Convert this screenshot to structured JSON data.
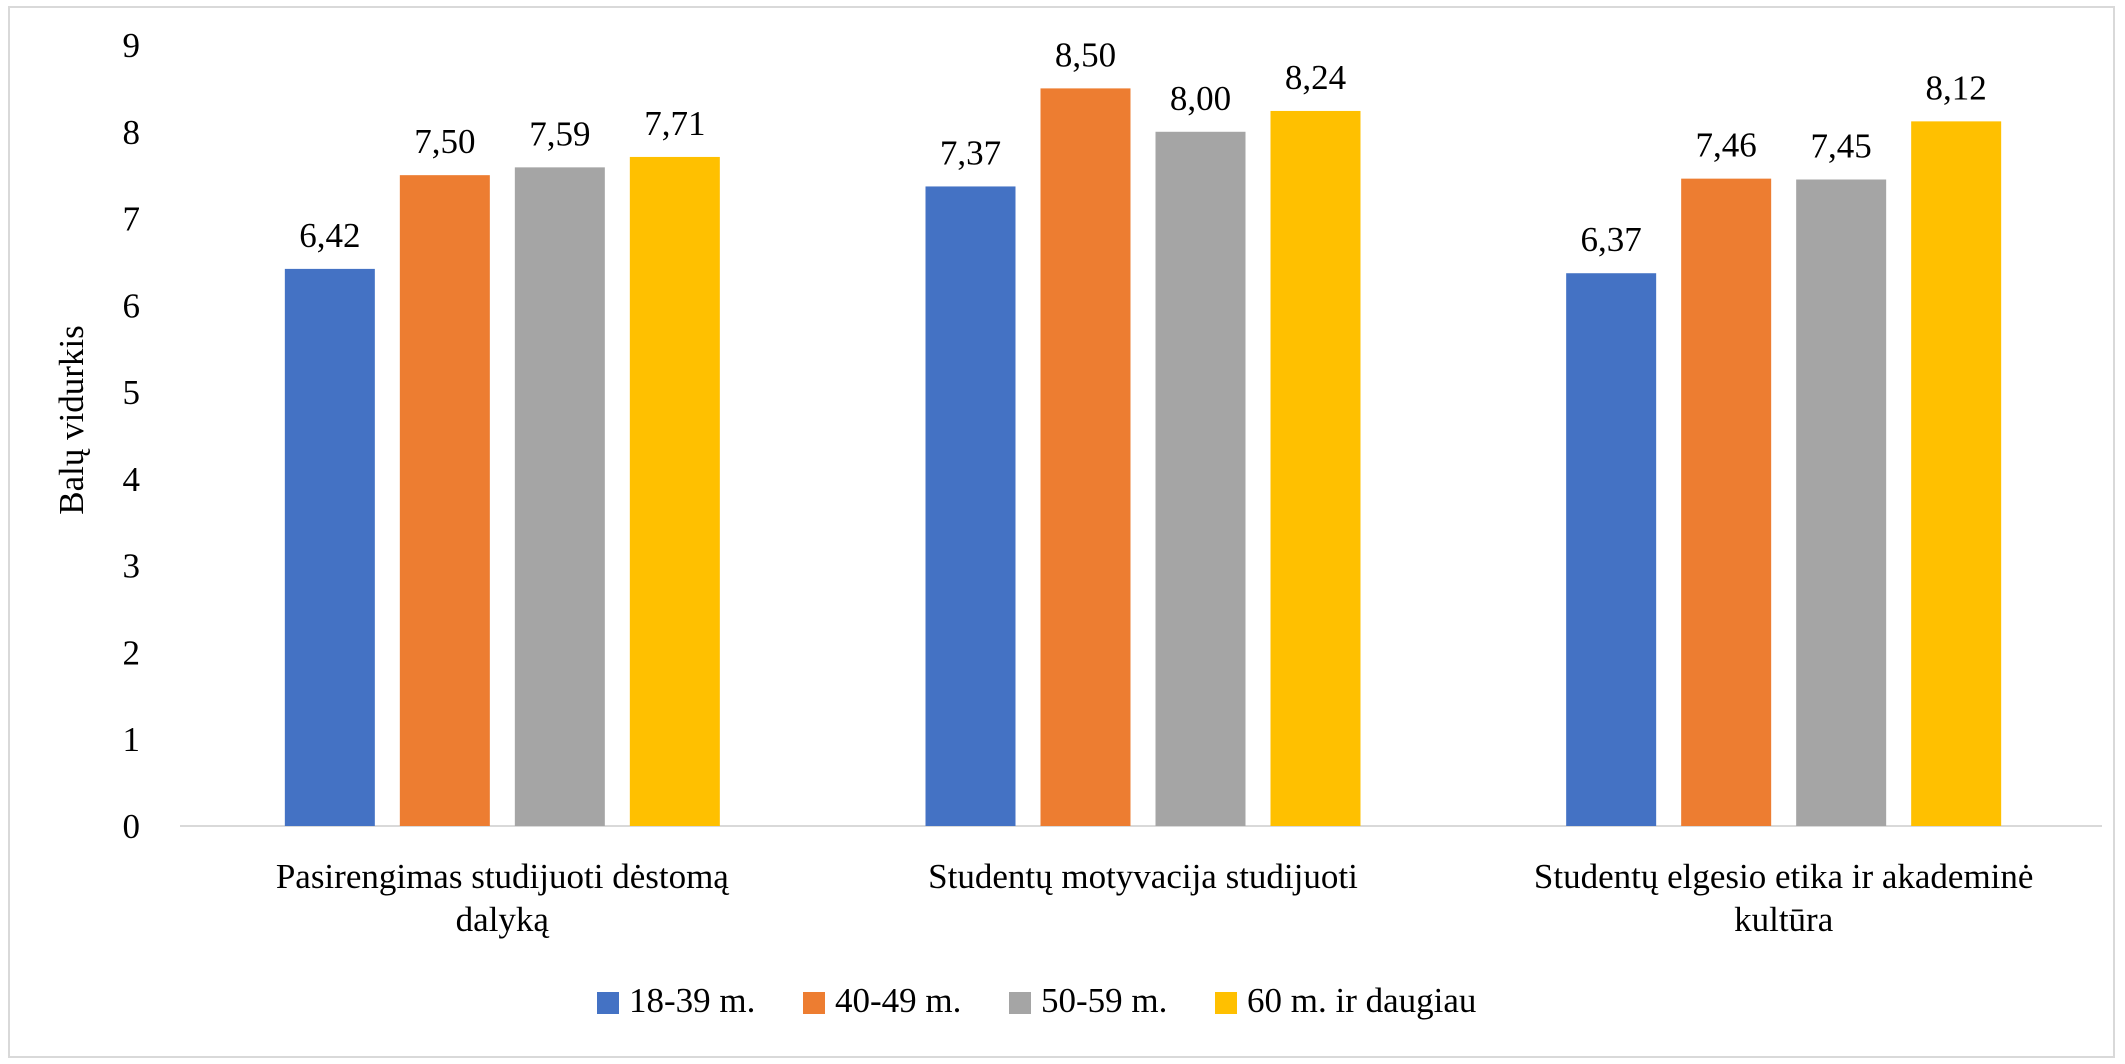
{
  "chart_data": {
    "type": "bar",
    "title": "",
    "xlabel": "",
    "ylabel": "Balų vidurkis",
    "ylim": [
      0,
      9
    ],
    "yticks": [
      "0",
      "1",
      "2",
      "3",
      "4",
      "5",
      "6",
      "7",
      "8",
      "9"
    ],
    "grid": false,
    "legend_position": "bottom",
    "categories": [
      [
        "Pasirengimas studijuoti dėstomą",
        "dalyką"
      ],
      [
        "Studentų motyvacija studijuoti"
      ],
      [
        "Studentų elgesio etika ir akademinė",
        "kultūra"
      ]
    ],
    "series": [
      {
        "name": "18-39 m.",
        "color": "#4472C4",
        "values": [
          6.42,
          7.37,
          6.37
        ],
        "labels": [
          "6,42",
          "7,37",
          "6,37"
        ]
      },
      {
        "name": "40-49 m.",
        "color": "#ED7D31",
        "values": [
          7.5,
          8.5,
          7.46
        ],
        "labels": [
          "7,50",
          "8,50",
          "7,46"
        ]
      },
      {
        "name": "50-59 m.",
        "color": "#A5A5A5",
        "values": [
          7.59,
          8.0,
          7.45
        ],
        "labels": [
          "7,59",
          "8,00",
          "7,45"
        ]
      },
      {
        "name": "60 m. ir daugiau",
        "color": "#FFC000",
        "values": [
          7.71,
          8.24,
          8.12
        ],
        "labels": [
          "7,71",
          "8,24",
          "8,12"
        ]
      }
    ]
  }
}
